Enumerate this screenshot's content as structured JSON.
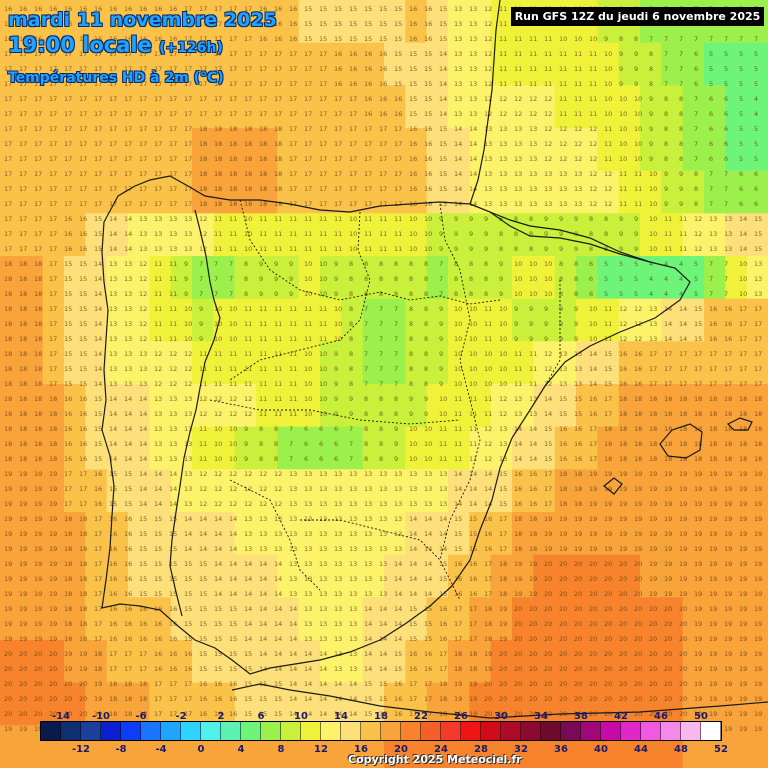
{
  "header": {
    "date": "mardi 11 novembre 2025",
    "time": "19:00 locale",
    "lead": "(+126h)",
    "variable": "Températures HD à 2m (°C)"
  },
  "run_label": "Run GFS 12Z du jeudi 6 novembre 2025",
  "copyright": "Copyright 2025 Meteociel.fr",
  "legend": {
    "top_labels": [
      "-14",
      "-10",
      "-6",
      "-2",
      "2",
      "6",
      "10",
      "14",
      "18",
      "22",
      "26",
      "30",
      "34",
      "38",
      "42",
      "46",
      "50"
    ],
    "bottom_labels": [
      "-12",
      "-8",
      "-4",
      "0",
      "4",
      "8",
      "12",
      "16",
      "20",
      "24",
      "28",
      "32",
      "36",
      "40",
      "44",
      "48",
      "52"
    ],
    "colors": [
      "#0b1a4d",
      "#102f73",
      "#1c3f9c",
      "#0b1fd1",
      "#0c3ff5",
      "#1a74ff",
      "#1ea6ff",
      "#2fd3ff",
      "#4ef2e8",
      "#5cf2b2",
      "#6df57a",
      "#9cf04b",
      "#c9f03a",
      "#f0f23a",
      "#fcf36a",
      "#fde07a",
      "#fbc24a",
      "#f9a43a",
      "#f7842d",
      "#f4602a",
      "#f43a2a",
      "#ef1515",
      "#d00c1a",
      "#b00a2a",
      "#8c0a30",
      "#6e0a2c",
      "#7a0a55",
      "#a0087a",
      "#c80aa8",
      "#e028c8",
      "#f05ae0",
      "#f38ae8",
      "#f7b8f0",
      "#ffffff"
    ]
  },
  "map": {
    "region": "Iberian Peninsula",
    "grid_values_note": "",
    "temperature_samples": [
      [
        16,
        16,
        16,
        16,
        16,
        16,
        16,
        16,
        17,
        17,
        17,
        17,
        16,
        16,
        15,
        15,
        15,
        15,
        15,
        16,
        15,
        13,
        12,
        11,
        11,
        11,
        10,
        10,
        9,
        8,
        7,
        7,
        7,
        7,
        7,
        7
      ],
      [
        17,
        17,
        17,
        17,
        17,
        17,
        17,
        17,
        17,
        17,
        17,
        17,
        17,
        17,
        17,
        16,
        16,
        16,
        15,
        15,
        14,
        13,
        12,
        11,
        11,
        11,
        11,
        11,
        10,
        9,
        8,
        7,
        6,
        5,
        5,
        5
      ],
      [
        17,
        17,
        17,
        17,
        17,
        17,
        17,
        17,
        17,
        17,
        17,
        17,
        17,
        17,
        17,
        17,
        17,
        16,
        16,
        15,
        14,
        13,
        12,
        12,
        12,
        12,
        11,
        11,
        10,
        10,
        9,
        8,
        7,
        6,
        5,
        4
      ],
      [
        17,
        17,
        17,
        17,
        17,
        17,
        17,
        17,
        17,
        18,
        18,
        18,
        18,
        17,
        17,
        17,
        17,
        17,
        17,
        16,
        15,
        14,
        13,
        13,
        13,
        12,
        12,
        12,
        11,
        10,
        9,
        8,
        7,
        6,
        5,
        5
      ],
      [
        17,
        17,
        17,
        17,
        17,
        17,
        17,
        17,
        17,
        18,
        18,
        18,
        18,
        17,
        17,
        17,
        17,
        17,
        17,
        16,
        15,
        14,
        13,
        13,
        13,
        13,
        13,
        12,
        12,
        11,
        10,
        9,
        8,
        7,
        6,
        6
      ],
      [
        17,
        17,
        17,
        16,
        15,
        14,
        13,
        13,
        13,
        12,
        11,
        10,
        11,
        11,
        11,
        11,
        10,
        11,
        11,
        10,
        9,
        9,
        9,
        8,
        8,
        9,
        9,
        8,
        8,
        9,
        10,
        11,
        12,
        13,
        14,
        15
      ],
      [
        18,
        18,
        17,
        15,
        14,
        13,
        12,
        11,
        9,
        7,
        7,
        8,
        9,
        9,
        10,
        9,
        8,
        8,
        8,
        8,
        7,
        8,
        8,
        9,
        10,
        10,
        8,
        6,
        5,
        5,
        4,
        4,
        5,
        7,
        10,
        13
      ],
      [
        18,
        18,
        17,
        15,
        14,
        13,
        12,
        11,
        10,
        9,
        10,
        11,
        11,
        11,
        11,
        10,
        8,
        7,
        7,
        8,
        9,
        10,
        11,
        10,
        9,
        9,
        9,
        10,
        11,
        12,
        13,
        14,
        15,
        16,
        17,
        17
      ],
      [
        18,
        18,
        17,
        15,
        14,
        13,
        13,
        12,
        12,
        11,
        11,
        11,
        11,
        11,
        10,
        9,
        8,
        7,
        7,
        8,
        9,
        10,
        10,
        10,
        11,
        12,
        13,
        14,
        15,
        16,
        17,
        17,
        17,
        17,
        17,
        17
      ],
      [
        18,
        18,
        18,
        16,
        15,
        14,
        14,
        13,
        13,
        12,
        12,
        12,
        11,
        11,
        10,
        9,
        9,
        8,
        8,
        9,
        10,
        11,
        11,
        12,
        13,
        14,
        15,
        16,
        17,
        18,
        18,
        18,
        18,
        18,
        18,
        18
      ],
      [
        18,
        18,
        18,
        16,
        15,
        14,
        14,
        13,
        13,
        11,
        10,
        9,
        8,
        7,
        6,
        6,
        7,
        8,
        9,
        10,
        11,
        11,
        12,
        13,
        14,
        15,
        16,
        17,
        18,
        18,
        18,
        18,
        18,
        18,
        18,
        18
      ],
      [
        19,
        19,
        19,
        17,
        16,
        15,
        14,
        14,
        13,
        12,
        12,
        12,
        12,
        13,
        13,
        13,
        13,
        13,
        13,
        13,
        13,
        14,
        14,
        15,
        16,
        17,
        18,
        19,
        19,
        19,
        19,
        19,
        19,
        19,
        19,
        19
      ],
      [
        19,
        19,
        19,
        18,
        17,
        16,
        15,
        15,
        14,
        14,
        14,
        13,
        13,
        13,
        13,
        13,
        13,
        13,
        13,
        14,
        14,
        15,
        16,
        17,
        18,
        19,
        19,
        19,
        19,
        19,
        19,
        19,
        19,
        19,
        19,
        19
      ],
      [
        19,
        19,
        19,
        18,
        17,
        16,
        15,
        15,
        15,
        15,
        14,
        14,
        14,
        13,
        13,
        13,
        13,
        13,
        14,
        14,
        15,
        16,
        17,
        18,
        19,
        20,
        20,
        20,
        20,
        20,
        19,
        19,
        19,
        19,
        19,
        19
      ],
      [
        19,
        19,
        19,
        18,
        17,
        16,
        16,
        16,
        15,
        15,
        15,
        14,
        14,
        14,
        13,
        13,
        13,
        14,
        14,
        15,
        16,
        17,
        18,
        19,
        20,
        20,
        20,
        20,
        20,
        20,
        20,
        20,
        19,
        19,
        19,
        19
      ],
      [
        20,
        20,
        20,
        19,
        18,
        17,
        17,
        16,
        16,
        15,
        15,
        15,
        14,
        14,
        14,
        13,
        13,
        14,
        15,
        16,
        17,
        18,
        19,
        20,
        20,
        20,
        20,
        20,
        20,
        20,
        20,
        20,
        19,
        19,
        19,
        19
      ],
      [
        20,
        20,
        20,
        20,
        19,
        18,
        18,
        17,
        17,
        16,
        16,
        15,
        15,
        14,
        14,
        14,
        14,
        15,
        16,
        17,
        18,
        19,
        20,
        20,
        20,
        20,
        20,
        20,
        20,
        20,
        20,
        20,
        19,
        19,
        19,
        19
      ],
      [
        19,
        19,
        19,
        19,
        19,
        19,
        19,
        19,
        18,
        18,
        18,
        18,
        19,
        19,
        19,
        19,
        19,
        19,
        20,
        20,
        20,
        20,
        20,
        20,
        20,
        20,
        20,
        20,
        20,
        20,
        20,
        20,
        19,
        19,
        19,
        19
      ]
    ]
  }
}
